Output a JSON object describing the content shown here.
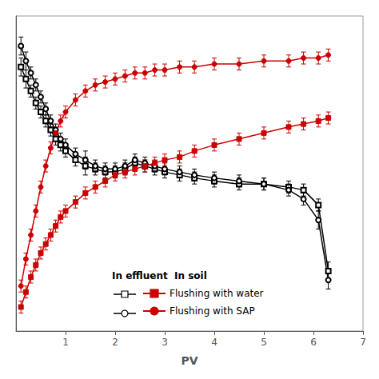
{
  "chart_data": {
    "type": "line",
    "xlabel": "PV",
    "annotations": [
      "In effluent  In soil"
    ],
    "x": [
      0.1,
      0.2,
      0.3,
      0.4,
      0.5,
      0.6,
      0.7,
      0.8,
      0.9,
      1.0,
      1.2,
      1.4,
      1.6,
      1.8,
      2.0,
      2.2,
      2.4,
      2.6,
      2.8,
      3.0,
      3.3,
      3.6,
      4.0,
      4.5,
      5.0,
      5.5,
      5.8,
      6.1,
      6.3
    ],
    "series": [
      {
        "color": "#000000",
        "marker": "open_square",
        "values": [
          0.88,
          0.84,
          0.8,
          0.76,
          0.73,
          0.7,
          0.67,
          0.64,
          0.62,
          0.6,
          0.57,
          0.55,
          0.54,
          0.53,
          0.53,
          0.54,
          0.56,
          0.55,
          0.54,
          0.53,
          0.52,
          0.51,
          0.5,
          0.49,
          0.49,
          0.48,
          0.47,
          0.42,
          0.2
        ],
        "errors": [
          0.03,
          0.03,
          0.02,
          0.02,
          0.02,
          0.02,
          0.02,
          0.02,
          0.02,
          0.02,
          0.02,
          0.03,
          0.02,
          0.02,
          0.02,
          0.02,
          0.02,
          0.02,
          0.02,
          0.02,
          0.02,
          0.02,
          0.02,
          0.02,
          0.02,
          0.02,
          0.02,
          0.02,
          0.03
        ]
      },
      {
        "color": "#000000",
        "marker": "open_circle",
        "values": [
          0.95,
          0.9,
          0.86,
          0.82,
          0.78,
          0.74,
          0.7,
          0.67,
          0.64,
          0.62,
          0.59,
          0.57,
          0.55,
          0.54,
          0.54,
          0.55,
          0.57,
          0.56,
          0.55,
          0.54,
          0.53,
          0.52,
          0.51,
          0.5,
          0.49,
          0.47,
          0.44,
          0.37,
          0.17
        ],
        "errors": [
          0.03,
          0.03,
          0.02,
          0.02,
          0.02,
          0.02,
          0.02,
          0.02,
          0.02,
          0.02,
          0.02,
          0.03,
          0.02,
          0.02,
          0.02,
          0.02,
          0.02,
          0.02,
          0.02,
          0.02,
          0.02,
          0.02,
          0.02,
          0.02,
          0.02,
          0.02,
          0.02,
          0.03,
          0.03
        ]
      },
      {
        "name": "Flushing with water",
        "color": "#cc0000",
        "marker": "square",
        "values": [
          0.08,
          0.13,
          0.18,
          0.22,
          0.26,
          0.29,
          0.32,
          0.35,
          0.38,
          0.4,
          0.43,
          0.46,
          0.48,
          0.5,
          0.52,
          0.53,
          0.54,
          0.55,
          0.56,
          0.57,
          0.58,
          0.6,
          0.62,
          0.64,
          0.66,
          0.68,
          0.69,
          0.7,
          0.71
        ],
        "errors": [
          0.02,
          0.02,
          0.02,
          0.02,
          0.02,
          0.02,
          0.02,
          0.02,
          0.02,
          0.02,
          0.02,
          0.02,
          0.02,
          0.02,
          0.02,
          0.02,
          0.02,
          0.02,
          0.02,
          0.02,
          0.02,
          0.02,
          0.02,
          0.02,
          0.02,
          0.02,
          0.02,
          0.02,
          0.02
        ]
      },
      {
        "name": "Flushing with SAP",
        "color": "#cc0000",
        "marker": "circle",
        "values": [
          0.15,
          0.24,
          0.32,
          0.4,
          0.48,
          0.55,
          0.61,
          0.66,
          0.7,
          0.73,
          0.77,
          0.8,
          0.82,
          0.83,
          0.84,
          0.85,
          0.86,
          0.86,
          0.87,
          0.87,
          0.88,
          0.88,
          0.89,
          0.89,
          0.9,
          0.9,
          0.91,
          0.91,
          0.92
        ],
        "errors": [
          0.02,
          0.02,
          0.02,
          0.02,
          0.02,
          0.02,
          0.02,
          0.02,
          0.02,
          0.02,
          0.02,
          0.02,
          0.02,
          0.02,
          0.02,
          0.02,
          0.02,
          0.02,
          0.02,
          0.02,
          0.02,
          0.02,
          0.02,
          0.02,
          0.02,
          0.02,
          0.02,
          0.02,
          0.02
        ]
      }
    ],
    "xlim": [
      0,
      7
    ],
    "xticks": [
      1,
      2,
      3,
      4,
      5,
      6,
      7
    ],
    "ylim": [
      0,
      1.05
    ],
    "yticks": [],
    "grid": false,
    "legend": "lower left",
    "tick_labels": "x"
  }
}
